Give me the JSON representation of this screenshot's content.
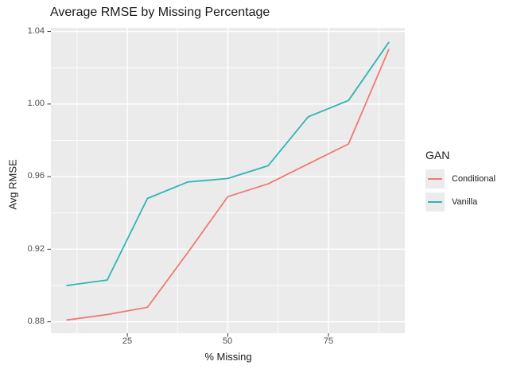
{
  "chart_data": {
    "type": "line",
    "title": "Average RMSE by Missing Percentage",
    "xlabel": "% Missing",
    "ylabel": "Avg RMSE",
    "x": [
      10,
      20,
      30,
      40,
      50,
      60,
      70,
      80,
      90
    ],
    "series": [
      {
        "name": "Conditional",
        "color": "#EE7A72",
        "values": [
          0.881,
          0.884,
          0.888,
          0.918,
          0.949,
          0.956,
          0.967,
          0.978,
          1.03
        ]
      },
      {
        "name": "Vanilla",
        "color": "#2FB5B5",
        "values": [
          0.9,
          0.903,
          0.948,
          0.957,
          0.959,
          0.966,
          0.993,
          1.002,
          1.034
        ]
      }
    ],
    "x_ticks": {
      "values": [
        25,
        50,
        75
      ],
      "labels": [
        "25",
        "50",
        "75"
      ]
    },
    "y_ticks": {
      "values": [
        1.04,
        1.0,
        0.96,
        0.92,
        0.88
      ],
      "labels": [
        "1.04",
        "1.00",
        "0.96",
        "0.92",
        "0.88"
      ]
    },
    "x_minor": [
      12.5,
      37.5,
      62.5,
      87.5
    ],
    "y_minor": [
      0.9,
      0.94,
      0.98,
      1.02
    ],
    "xlim": [
      6,
      94
    ],
    "ylim": [
      0.8737,
      1.042
    ],
    "grid": true,
    "panel_bg": "#EBEBEB",
    "grid_color": "#FFFFFF",
    "tick_mark_color": "#333333",
    "legend": {
      "title": "GAN",
      "position": "right"
    }
  }
}
